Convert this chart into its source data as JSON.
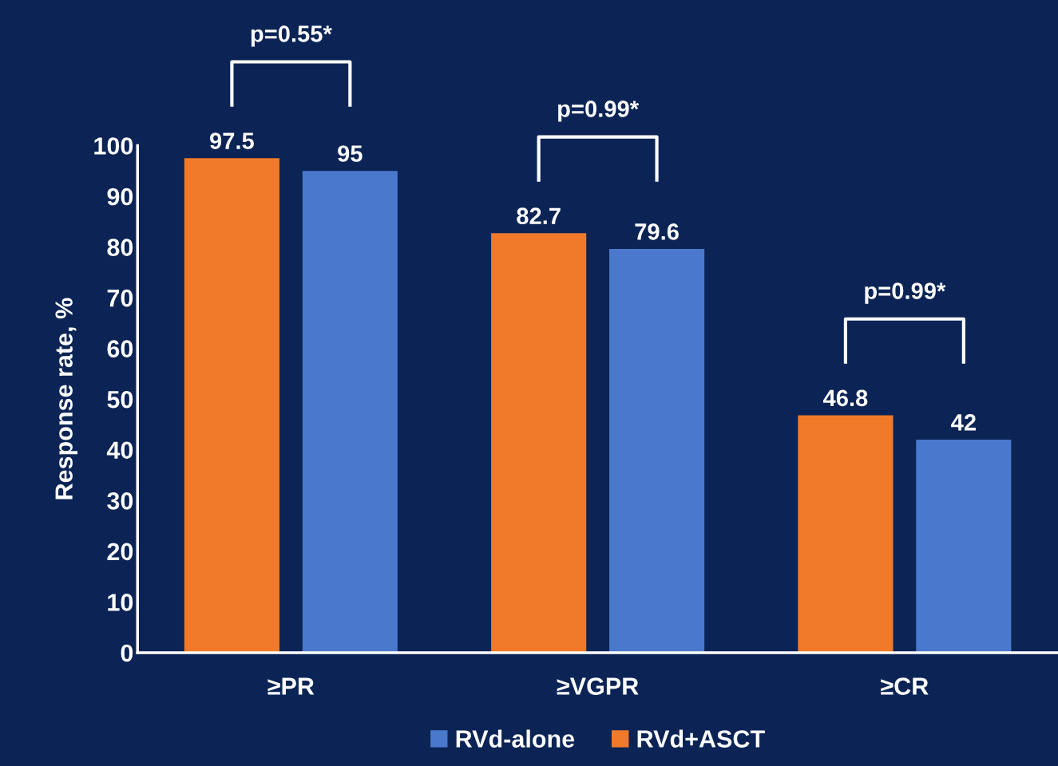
{
  "chart_data": {
    "type": "bar",
    "ylabel": "Response rate, %",
    "categories": [
      "≥PR",
      "≥VGPR",
      "≥CR"
    ],
    "series": [
      {
        "name": "RVd+ASCT",
        "color": "#f07a2a",
        "values": [
          97.5,
          82.7,
          46.8
        ]
      },
      {
        "name": "RVd-alone",
        "color": "#4a78cc",
        "values": [
          95,
          79.6,
          42
        ]
      }
    ],
    "ylim": [
      0,
      100
    ],
    "yticks": [
      0,
      10,
      20,
      30,
      40,
      50,
      60,
      70,
      80,
      90,
      100
    ],
    "data_labels": true,
    "grid": false,
    "legend": "bottom",
    "annotations": [
      "p=0.55*",
      "p=0.99*",
      "p=0.99*"
    ]
  }
}
